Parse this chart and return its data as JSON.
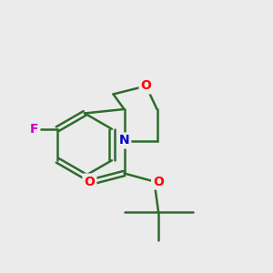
{
  "background_color": "#ebebeb",
  "bond_color": "#2d6b2d",
  "bond_width": 1.8,
  "atom_colors": {
    "O": "#ff0000",
    "N": "#0000cc",
    "F": "#cc00cc",
    "C": "#1a1a1a"
  },
  "font_size_atom": 11,
  "fig_w": 3.0,
  "fig_h": 3.0,
  "dpi": 100
}
